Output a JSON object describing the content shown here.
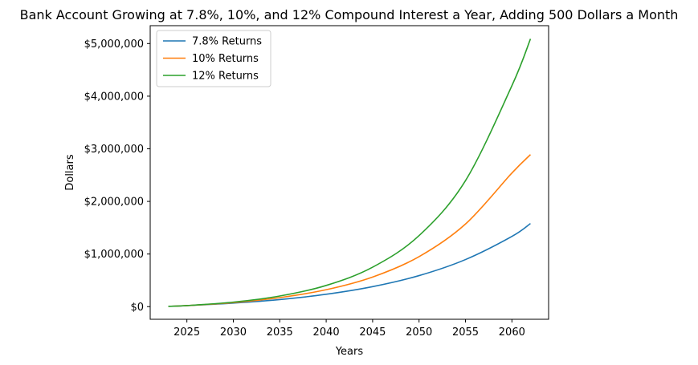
{
  "chart_data": {
    "type": "line",
    "title": "Bank Account Growing at 7.8%, 10%, and 12% Compound Interest a Year, Adding 500 Dollars a Month",
    "xlabel": "Years",
    "ylabel": "Dollars",
    "xlim": [
      2021.05,
      2063.95
    ],
    "ylim": [
      -240000,
      5340000
    ],
    "x_ticks": [
      2025,
      2030,
      2035,
      2040,
      2045,
      2050,
      2055,
      2060
    ],
    "y_ticks": [
      0,
      1000000,
      2000000,
      3000000,
      4000000,
      5000000
    ],
    "y_tick_labels": [
      "$0",
      "$1,000,000",
      "$2,000,000",
      "$3,000,000",
      "$4,000,000",
      "$5,000,000"
    ],
    "legend_position": "upper-left",
    "grid": false,
    "x": [
      2023,
      2025,
      2030,
      2035,
      2040,
      2045,
      2050,
      2055,
      2060,
      2062
    ],
    "series": [
      {
        "name": "7.8% Returns",
        "color": "#1f77b4",
        "values": [
          6000,
          19000,
          68000,
          135000,
          235000,
          380000,
          590000,
          895000,
          1335000,
          1580000
        ]
      },
      {
        "name": "10% Returns",
        "color": "#ff7f0e",
        "values": [
          6000,
          20000,
          77000,
          172000,
          322000,
          563000,
          950000,
          1570000,
          2540000,
          2890000
        ]
      },
      {
        "name": "12% Returns",
        "color": "#2ca02c",
        "values": [
          6000,
          20500,
          86000,
          202000,
          403000,
          750000,
          1350000,
          2395000,
          4200000,
          5090000
        ]
      }
    ]
  }
}
